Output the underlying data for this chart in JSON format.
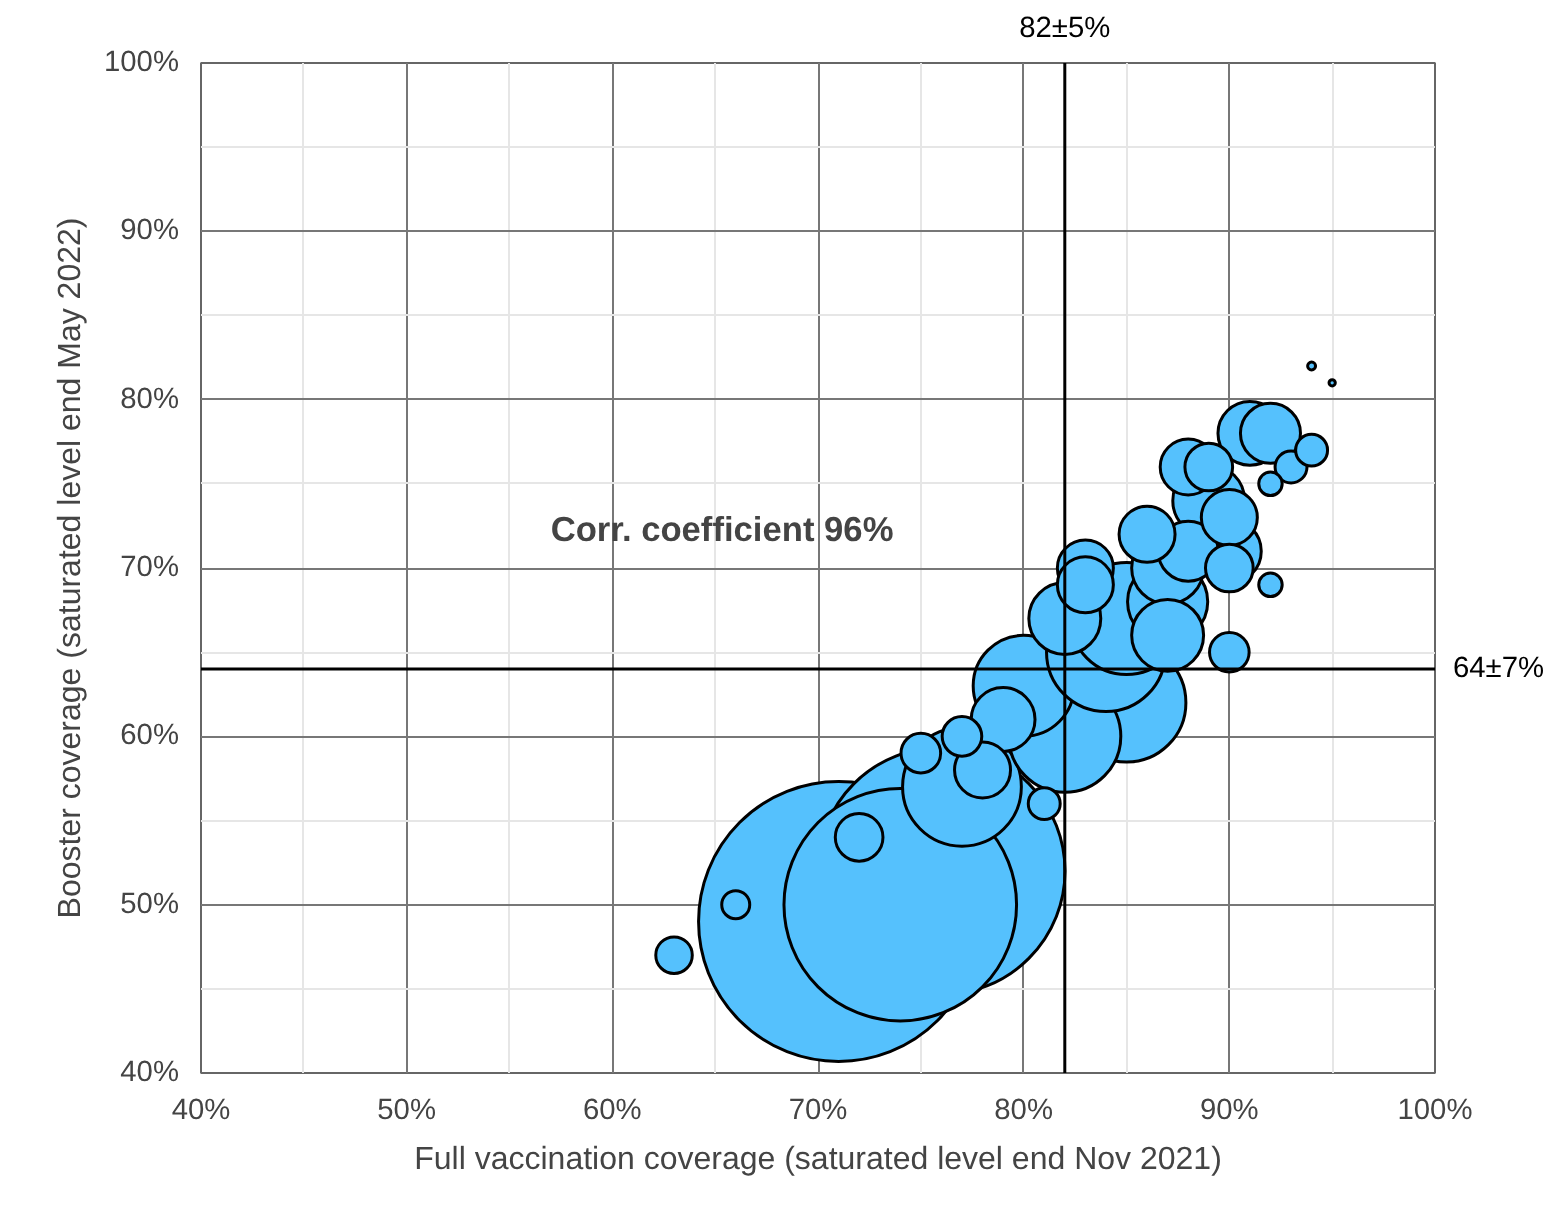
{
  "chart_data": {
    "type": "bubble",
    "xlabel": "Full vaccination coverage (saturated level end Nov 2021)",
    "ylabel": "Booster coverage (saturated level end May 2022)",
    "x": [
      71,
      76,
      74,
      77,
      85,
      82,
      80,
      84,
      85,
      87,
      82,
      87,
      89,
      87,
      79,
      91,
      90,
      92,
      88,
      78,
      83,
      88,
      90,
      86,
      83,
      72,
      89,
      90,
      75,
      77,
      90,
      63,
      81,
      93,
      94,
      66,
      92,
      92,
      94,
      95
    ],
    "values": [
      49,
      52,
      50,
      57,
      62,
      60,
      63,
      65,
      67,
      68,
      67,
      70,
      74,
      66,
      61,
      78,
      71,
      78,
      71,
      58,
      70,
      76,
      73,
      72,
      69,
      54,
      76,
      70,
      59,
      60,
      65,
      47,
      56,
      76,
      77,
      50,
      69,
      75,
      82,
      81
    ],
    "sizes": [
      1,
      0.78,
      0.69,
      0.18,
      0.18,
      0.16,
      0.13,
      0.18,
      0.16,
      0.082,
      0.066,
      0.066,
      0.066,
      0.066,
      0.052,
      0.052,
      0.052,
      0.046,
      0.046,
      0.04,
      0.04,
      0.04,
      0.04,
      0.04,
      0.04,
      0.029,
      0.029,
      0.029,
      0.02,
      0.02,
      0.02,
      0.017,
      0.013,
      0.013,
      0.013,
      0.01,
      0.007,
      0.007,
      0.0008,
      0.0005
    ],
    "color": "#55c1fd",
    "marker": "circle",
    "xlim": [
      40,
      100
    ],
    "ylim": [
      40,
      100
    ],
    "xticks": [
      {
        "value": 40,
        "label": "40%"
      },
      {
        "value": 50,
        "label": "50%"
      },
      {
        "value": 60,
        "label": "60%"
      },
      {
        "value": 70,
        "label": "70%"
      },
      {
        "value": 80,
        "label": "80%"
      },
      {
        "value": 90,
        "label": "90%"
      },
      {
        "value": 100,
        "label": "100%"
      }
    ],
    "yticks": [
      {
        "value": 40,
        "label": "40%"
      },
      {
        "value": 50,
        "label": "50%"
      },
      {
        "value": 60,
        "label": "60%"
      },
      {
        "value": 70,
        "label": "70%"
      },
      {
        "value": 80,
        "label": "80%"
      },
      {
        "value": 90,
        "label": "90%"
      },
      {
        "value": 100,
        "label": "100%"
      }
    ],
    "grid": true,
    "ref_lines": [
      {
        "axis": "x",
        "value": 82,
        "label": "82±5%",
        "color": "#000000"
      },
      {
        "axis": "y",
        "value": 64,
        "label": "64±7%",
        "color": "#000000"
      }
    ],
    "annotations": [
      "Corr. coefficient 96%"
    ]
  }
}
